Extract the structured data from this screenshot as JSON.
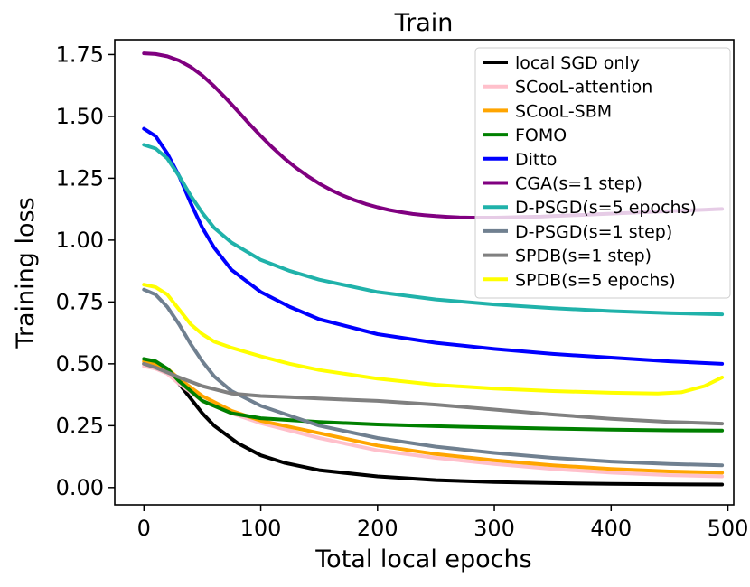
{
  "chart_data": {
    "type": "line",
    "title": "Train",
    "xlabel": "Total local epochs",
    "ylabel": "Training loss",
    "xlim": [
      -25,
      505
    ],
    "ylim": [
      -0.07,
      1.81
    ],
    "xticks": [
      "0",
      "100",
      "200",
      "300",
      "400",
      "500"
    ],
    "yticks": [
      "0.00",
      "0.25",
      "0.50",
      "0.75",
      "1.00",
      "1.25",
      "1.50",
      "1.75"
    ],
    "legend_position": "upper-right",
    "series": [
      {
        "name": "local SGD only",
        "color": "#000000",
        "x": [
          0,
          10,
          20,
          30,
          40,
          50,
          60,
          80,
          100,
          120,
          150,
          200,
          250,
          300,
          350,
          400,
          450,
          495
        ],
        "y": [
          0.5,
          0.495,
          0.47,
          0.42,
          0.36,
          0.3,
          0.25,
          0.18,
          0.13,
          0.1,
          0.07,
          0.045,
          0.03,
          0.022,
          0.018,
          0.015,
          0.013,
          0.012
        ]
      },
      {
        "name": "SCooL-attention",
        "color": "#ffc0cb",
        "x": [
          0,
          10,
          20,
          30,
          50,
          75,
          100,
          150,
          200,
          250,
          300,
          350,
          400,
          450,
          495
        ],
        "y": [
          0.49,
          0.48,
          0.46,
          0.42,
          0.35,
          0.3,
          0.26,
          0.2,
          0.15,
          0.12,
          0.095,
          0.075,
          0.06,
          0.05,
          0.045
        ]
      },
      {
        "name": "SCooL-SBM",
        "color": "#ffa500",
        "x": [
          0,
          10,
          20,
          30,
          50,
          75,
          100,
          150,
          200,
          250,
          300,
          350,
          400,
          450,
          495
        ],
        "y": [
          0.51,
          0.5,
          0.48,
          0.44,
          0.37,
          0.31,
          0.27,
          0.22,
          0.17,
          0.135,
          0.11,
          0.09,
          0.075,
          0.065,
          0.06
        ]
      },
      {
        "name": "FOMO",
        "color": "#008000",
        "x": [
          0,
          10,
          20,
          30,
          50,
          75,
          100,
          150,
          200,
          250,
          300,
          350,
          400,
          450,
          495
        ],
        "y": [
          0.52,
          0.51,
          0.48,
          0.43,
          0.35,
          0.3,
          0.28,
          0.265,
          0.255,
          0.248,
          0.243,
          0.238,
          0.234,
          0.231,
          0.23
        ]
      },
      {
        "name": "Ditto",
        "color": "#0000ff",
        "x": [
          0,
          10,
          20,
          30,
          40,
          50,
          60,
          75,
          100,
          125,
          150,
          200,
          250,
          300,
          350,
          400,
          450,
          495
        ],
        "y": [
          1.45,
          1.42,
          1.35,
          1.26,
          1.15,
          1.05,
          0.97,
          0.88,
          0.79,
          0.73,
          0.68,
          0.62,
          0.585,
          0.56,
          0.54,
          0.525,
          0.51,
          0.5
        ]
      },
      {
        "name": "CGA(s=1 step)",
        "color": "#800080",
        "x": [
          0,
          10,
          20,
          30,
          40,
          50,
          60,
          70,
          80,
          90,
          100,
          110,
          120,
          130,
          140,
          150,
          160,
          170,
          180,
          190,
          200,
          210,
          220,
          230,
          240,
          250,
          260,
          270,
          280,
          290,
          300,
          310,
          320,
          330,
          340,
          350,
          360,
          370,
          380,
          390,
          400,
          410,
          420,
          430,
          440,
          450,
          460,
          470,
          480,
          490,
          495
        ],
        "y": [
          1.755,
          1.752,
          1.743,
          1.726,
          1.7,
          1.665,
          1.622,
          1.574,
          1.523,
          1.471,
          1.421,
          1.374,
          1.331,
          1.293,
          1.259,
          1.229,
          1.203,
          1.181,
          1.162,
          1.146,
          1.133,
          1.122,
          1.113,
          1.106,
          1.101,
          1.097,
          1.094,
          1.092,
          1.091,
          1.091,
          1.091,
          1.092,
          1.093,
          1.094,
          1.095,
          1.097,
          1.099,
          1.101,
          1.103,
          1.105,
          1.107,
          1.109,
          1.111,
          1.113,
          1.115,
          1.117,
          1.119,
          1.121,
          1.123,
          1.125,
          1.126
        ]
      },
      {
        "name": "D-PSGD(s=5 epochs)",
        "color": "#20b2aa",
        "x": [
          0,
          10,
          20,
          30,
          40,
          50,
          60,
          75,
          100,
          125,
          150,
          200,
          250,
          300,
          350,
          400,
          450,
          495
        ],
        "y": [
          1.385,
          1.37,
          1.33,
          1.26,
          1.18,
          1.11,
          1.05,
          0.99,
          0.92,
          0.875,
          0.84,
          0.79,
          0.76,
          0.74,
          0.725,
          0.713,
          0.705,
          0.7
        ]
      },
      {
        "name": "D-PSGD(s=1 step)",
        "color": "#708090",
        "x": [
          0,
          10,
          20,
          30,
          40,
          50,
          60,
          75,
          100,
          125,
          150,
          200,
          250,
          300,
          350,
          400,
          450,
          495
        ],
        "y": [
          0.8,
          0.78,
          0.73,
          0.66,
          0.58,
          0.51,
          0.45,
          0.39,
          0.33,
          0.29,
          0.25,
          0.2,
          0.165,
          0.14,
          0.12,
          0.105,
          0.095,
          0.09
        ]
      },
      {
        "name": "SPDB(s=1 step)",
        "color": "#808080",
        "x": [
          0,
          10,
          20,
          30,
          50,
          75,
          100,
          125,
          150,
          175,
          200,
          250,
          300,
          350,
          400,
          450,
          495
        ],
        "y": [
          0.5,
          0.485,
          0.465,
          0.445,
          0.41,
          0.38,
          0.37,
          0.365,
          0.36,
          0.355,
          0.35,
          0.335,
          0.315,
          0.295,
          0.278,
          0.265,
          0.258
        ]
      },
      {
        "name": "SPDB(s=5 epochs)",
        "color": "#ffff00",
        "x": [
          0,
          10,
          20,
          30,
          40,
          50,
          60,
          75,
          100,
          125,
          150,
          200,
          250,
          300,
          350,
          400,
          440,
          460,
          480,
          495
        ],
        "y": [
          0.82,
          0.81,
          0.78,
          0.72,
          0.66,
          0.62,
          0.59,
          0.565,
          0.53,
          0.5,
          0.475,
          0.44,
          0.415,
          0.4,
          0.39,
          0.383,
          0.38,
          0.385,
          0.41,
          0.445
        ]
      }
    ]
  }
}
